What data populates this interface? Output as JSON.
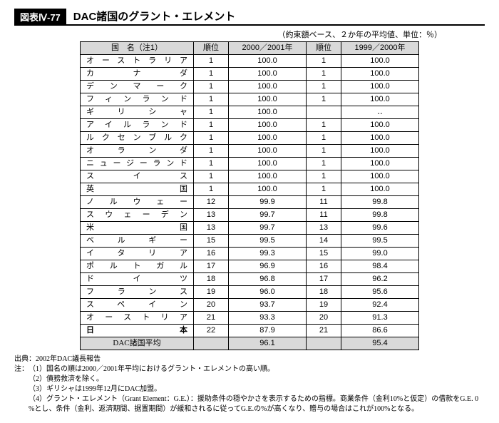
{
  "figure": {
    "tag": "図表Ⅳ-77",
    "title": "DAC諸国のグラント・エレメント",
    "subcaption": "（約束額ベース、２か年の平均値、単位：％）"
  },
  "table": {
    "headers": {
      "country": "国　名（注1）",
      "rank1": "順位",
      "period1": "2000／2001年",
      "rank2": "順位",
      "period2": "1999／2000年"
    },
    "rows": [
      {
        "country": "オーストラリア",
        "r1": "1",
        "v1": "100.0",
        "r2": "1",
        "v2": "100.0"
      },
      {
        "country": "カナダ",
        "r1": "1",
        "v1": "100.0",
        "r2": "1",
        "v2": "100.0"
      },
      {
        "country": "デンマーク",
        "r1": "1",
        "v1": "100.0",
        "r2": "1",
        "v2": "100.0"
      },
      {
        "country": "フィンランド",
        "r1": "1",
        "v1": "100.0",
        "r2": "1",
        "v2": "100.0"
      },
      {
        "country": "ギリシャ",
        "r1": "1",
        "v1": "100.0",
        "r2": "",
        "v2": "‥"
      },
      {
        "country": "アイルランド",
        "r1": "1",
        "v1": "100.0",
        "r2": "1",
        "v2": "100.0"
      },
      {
        "country": "ルクセンブルク",
        "r1": "1",
        "v1": "100.0",
        "r2": "1",
        "v2": "100.0"
      },
      {
        "country": "オランダ",
        "r1": "1",
        "v1": "100.0",
        "r2": "1",
        "v2": "100.0"
      },
      {
        "country": "ニュージーランド",
        "r1": "1",
        "v1": "100.0",
        "r2": "1",
        "v2": "100.0"
      },
      {
        "country": "スイス",
        "r1": "1",
        "v1": "100.0",
        "r2": "1",
        "v2": "100.0"
      },
      {
        "country": "英国",
        "r1": "1",
        "v1": "100.0",
        "r2": "1",
        "v2": "100.0"
      },
      {
        "country": "ノルウェー",
        "r1": "12",
        "v1": "99.9",
        "r2": "11",
        "v2": "99.8"
      },
      {
        "country": "スウェーデン",
        "r1": "13",
        "v1": "99.7",
        "r2": "11",
        "v2": "99.8"
      },
      {
        "country": "米国",
        "r1": "13",
        "v1": "99.7",
        "r2": "13",
        "v2": "99.6"
      },
      {
        "country": "ベルギー",
        "r1": "15",
        "v1": "99.5",
        "r2": "14",
        "v2": "99.5"
      },
      {
        "country": "イタリア",
        "r1": "16",
        "v1": "99.3",
        "r2": "15",
        "v2": "99.0"
      },
      {
        "country": "ポルトガル",
        "r1": "17",
        "v1": "96.9",
        "r2": "16",
        "v2": "98.4"
      },
      {
        "country": "ドイツ",
        "r1": "18",
        "v1": "96.8",
        "r2": "17",
        "v2": "96.2"
      },
      {
        "country": "フランス",
        "r1": "19",
        "v1": "96.0",
        "r2": "18",
        "v2": "95.6"
      },
      {
        "country": "スペイン",
        "r1": "20",
        "v1": "93.7",
        "r2": "19",
        "v2": "92.4"
      },
      {
        "country": "オーストリア",
        "r1": "21",
        "v1": "93.3",
        "r2": "20",
        "v2": "91.3"
      },
      {
        "country": "日本",
        "r1": "22",
        "v1": "87.9",
        "r2": "21",
        "v2": "86.6",
        "bold": true
      }
    ],
    "average": {
      "label": "DAC諸国平均",
      "v1": "96.1",
      "v2": "95.4"
    }
  },
  "notes": {
    "source_label": "出典：",
    "source": "2002年DAC議長報告",
    "note_label": "注：",
    "items": [
      "（1）国名の順は2000／2001年平均におけるグラント・エレメントの高い順。",
      "（2）債務救済を除く。",
      "（3）ギリシャは1999年12月にDAC加盟。",
      "（4）グラント・エレメント（Grant Element：G.E.）：援助条件の穏やかさを表示するための指標。商業条件（金利10%と仮定）の借款をG.E. 0 %とし、条件（金利、返済期間、据置期間）が緩和されるに従ってG.E.の%が高くなり、贈与の場合はこれが100%となる。"
    ]
  }
}
